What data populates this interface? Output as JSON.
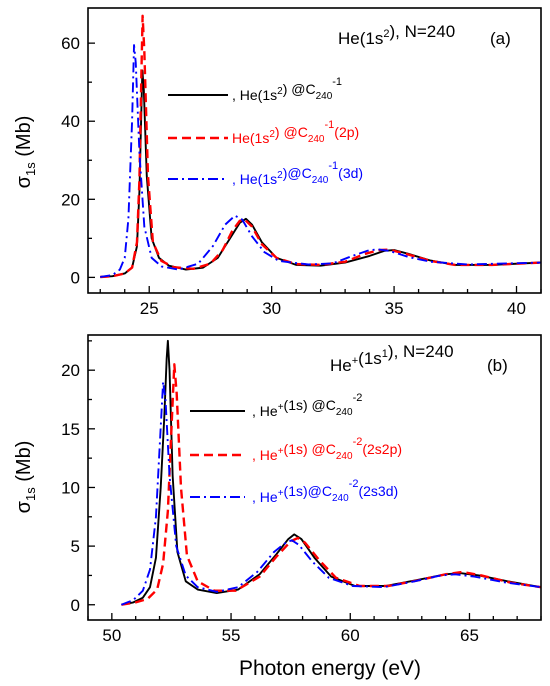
{
  "chart_data": [
    {
      "id": "a",
      "type": "line",
      "title": "He(1s²), N=240",
      "panel_label": "(a)",
      "xlabel": "",
      "ylabel": "σ1s (Mb)",
      "xlim": [
        22.5,
        41
      ],
      "ylim": [
        -4,
        69
      ],
      "xticks": [
        25,
        30,
        35,
        40
      ],
      "yticks": [
        0,
        20,
        40,
        60
      ],
      "grid": false,
      "legend_position": "center",
      "series": [
        {
          "name": ", He(1s²) @C240⁻¹",
          "color": "#000000",
          "dash": "solid",
          "points": [
            [
              23,
              0.1
            ],
            [
              23.5,
              0.3
            ],
            [
              24,
              1
            ],
            [
              24.3,
              2.5
            ],
            [
              24.5,
              8
            ],
            [
              24.6,
              22
            ],
            [
              24.68,
              43
            ],
            [
              24.72,
              53
            ],
            [
              24.78,
              48
            ],
            [
              24.9,
              26
            ],
            [
              25.1,
              10
            ],
            [
              25.4,
              5
            ],
            [
              25.8,
              3
            ],
            [
              26.5,
              2
            ],
            [
              27.2,
              2.5
            ],
            [
              27.8,
              5
            ],
            [
              28.3,
              10
            ],
            [
              28.7,
              14
            ],
            [
              28.95,
              15
            ],
            [
              29.2,
              13.5
            ],
            [
              29.6,
              9
            ],
            [
              30.2,
              5
            ],
            [
              31,
              3.2
            ],
            [
              32,
              3
            ],
            [
              33,
              3.8
            ],
            [
              34,
              5.5
            ],
            [
              34.6,
              6.8
            ],
            [
              35,
              7
            ],
            [
              35.6,
              6
            ],
            [
              36.5,
              4.3
            ],
            [
              37.5,
              3.2
            ],
            [
              39,
              3.2
            ],
            [
              41,
              3.8
            ]
          ]
        },
        {
          "name": "He(1s²) @C240⁻¹(2p)",
          "color": "#ff0000",
          "dash": "dashed",
          "points": [
            [
              23,
              0.1
            ],
            [
              23.5,
              0.3
            ],
            [
              24,
              1
            ],
            [
              24.3,
              2.5
            ],
            [
              24.5,
              9
            ],
            [
              24.6,
              25
            ],
            [
              24.68,
              52
            ],
            [
              24.73,
              67
            ],
            [
              24.8,
              58
            ],
            [
              24.95,
              26
            ],
            [
              25.15,
              9
            ],
            [
              25.5,
              4.2
            ],
            [
              26,
              2.6
            ],
            [
              26.8,
              2.2
            ],
            [
              27.5,
              3.5
            ],
            [
              28,
              7
            ],
            [
              28.4,
              12
            ],
            [
              28.7,
              14.5
            ],
            [
              28.9,
              14.8
            ],
            [
              29.2,
              13
            ],
            [
              29.6,
              8.5
            ],
            [
              30.2,
              5
            ],
            [
              31,
              3.4
            ],
            [
              32,
              3.2
            ],
            [
              33,
              4
            ],
            [
              33.8,
              6
            ],
            [
              34.4,
              7
            ],
            [
              34.8,
              7.1
            ],
            [
              35.5,
              6
            ],
            [
              36.5,
              4.2
            ],
            [
              37.5,
              3.2
            ],
            [
              39,
              3.2
            ],
            [
              41,
              3.8
            ]
          ]
        },
        {
          "name": ", He(1s²)@C240⁻¹(3d)",
          "color": "#0000ff",
          "dash": "dashdot",
          "points": [
            [
              23,
              0.1
            ],
            [
              23.5,
              0.6
            ],
            [
              23.8,
              2
            ],
            [
              24,
              5
            ],
            [
              24.15,
              15
            ],
            [
              24.3,
              40
            ],
            [
              24.38,
              59.5
            ],
            [
              24.45,
              55
            ],
            [
              24.6,
              32
            ],
            [
              24.8,
              13
            ],
            [
              25.1,
              5
            ],
            [
              25.5,
              2.8
            ],
            [
              26.2,
              2
            ],
            [
              27,
              3.5
            ],
            [
              27.6,
              8
            ],
            [
              28.1,
              13.5
            ],
            [
              28.5,
              15.8
            ],
            [
              28.8,
              14.8
            ],
            [
              29.2,
              10.5
            ],
            [
              29.7,
              6.5
            ],
            [
              30.3,
              4.2
            ],
            [
              31.5,
              3.3
            ],
            [
              32.5,
              3.6
            ],
            [
              33.3,
              5.5
            ],
            [
              33.9,
              6.8
            ],
            [
              34.3,
              7.2
            ],
            [
              34.8,
              6.8
            ],
            [
              35.6,
              5.2
            ],
            [
              36.5,
              4
            ],
            [
              38,
              3.3
            ],
            [
              41,
              3.8
            ]
          ]
        }
      ]
    },
    {
      "id": "b",
      "type": "line",
      "title": "He⁺(1s¹), N=240",
      "panel_label": "(b)",
      "xlabel": "Photon energy (eV)",
      "ylabel": "σ1s (Mb)",
      "xlim": [
        49,
        68
      ],
      "ylim": [
        -1.3,
        23
      ],
      "xticks": [
        50,
        55,
        60,
        65
      ],
      "yticks": [
        0,
        5,
        10,
        15,
        20
      ],
      "grid": false,
      "legend_position": "upper-center",
      "series": [
        {
          "name": ", He⁺(1s) @C240⁻²",
          "color": "#000000",
          "dash": "solid",
          "points": [
            [
              50.4,
              0
            ],
            [
              50.9,
              0.2
            ],
            [
              51.3,
              0.6
            ],
            [
              51.6,
              1.5
            ],
            [
              51.85,
              4
            ],
            [
              52.05,
              10
            ],
            [
              52.2,
              16
            ],
            [
              52.3,
              21
            ],
            [
              52.35,
              22.5
            ],
            [
              52.42,
              20
            ],
            [
              52.55,
              11
            ],
            [
              52.75,
              4.5
            ],
            [
              53.1,
              2
            ],
            [
              53.6,
              1.3
            ],
            [
              54.4,
              1
            ],
            [
              55.3,
              1.3
            ],
            [
              56.2,
              2.6
            ],
            [
              56.9,
              4.3
            ],
            [
              57.4,
              5.6
            ],
            [
              57.65,
              6
            ],
            [
              57.95,
              5.6
            ],
            [
              58.5,
              4
            ],
            [
              59.2,
              2.4
            ],
            [
              60.2,
              1.6
            ],
            [
              61.5,
              1.6
            ],
            [
              62.8,
              2.1
            ],
            [
              64,
              2.6
            ],
            [
              64.6,
              2.7
            ],
            [
              65.4,
              2.5
            ],
            [
              66.6,
              2
            ],
            [
              68,
              1.5
            ]
          ]
        },
        {
          "name": ", He⁺(1s) @C240⁻²(2s2p)",
          "color": "#ff0000",
          "dash": "dashed",
          "points": [
            [
              50.4,
              0
            ],
            [
              51,
              0.2
            ],
            [
              51.5,
              0.5
            ],
            [
              51.9,
              1.3
            ],
            [
              52.15,
              3.5
            ],
            [
              52.35,
              8
            ],
            [
              52.5,
              15
            ],
            [
              52.62,
              20.5
            ],
            [
              52.72,
              18
            ],
            [
              52.9,
              10
            ],
            [
              53.15,
              4.2
            ],
            [
              53.6,
              2
            ],
            [
              54.3,
              1.2
            ],
            [
              55.2,
              1.2
            ],
            [
              56.2,
              2.4
            ],
            [
              56.9,
              4.1
            ],
            [
              57.5,
              5.4
            ],
            [
              57.8,
              5.7
            ],
            [
              58.1,
              5.3
            ],
            [
              58.7,
              3.8
            ],
            [
              59.4,
              2.3
            ],
            [
              60.4,
              1.6
            ],
            [
              61.6,
              1.6
            ],
            [
              62.9,
              2.1
            ],
            [
              64,
              2.6
            ],
            [
              64.7,
              2.8
            ],
            [
              65.5,
              2.5
            ],
            [
              66.7,
              1.9
            ],
            [
              68,
              1.5
            ]
          ]
        },
        {
          "name": ", He⁺(1s)@C240⁻²(2s3d)",
          "color": "#0000ff",
          "dash": "dashdot",
          "points": [
            [
              50.4,
              0
            ],
            [
              50.9,
              0.4
            ],
            [
              51.3,
              1.2
            ],
            [
              51.6,
              3
            ],
            [
              51.85,
              7.5
            ],
            [
              52.02,
              14
            ],
            [
              52.15,
              19
            ],
            [
              52.25,
              17.5
            ],
            [
              52.42,
              11
            ],
            [
              52.7,
              5
            ],
            [
              53.1,
              2.5
            ],
            [
              53.6,
              1.5
            ],
            [
              54.4,
              1.1
            ],
            [
              55.3,
              1.5
            ],
            [
              56.1,
              2.8
            ],
            [
              56.8,
              4.5
            ],
            [
              57.3,
              5.3
            ],
            [
              57.55,
              5.5
            ],
            [
              57.85,
              5.1
            ],
            [
              58.4,
              3.7
            ],
            [
              59.1,
              2.3
            ],
            [
              60.1,
              1.6
            ],
            [
              61.4,
              1.5
            ],
            [
              62.7,
              2
            ],
            [
              63.8,
              2.5
            ],
            [
              64.4,
              2.6
            ],
            [
              65.2,
              2.4
            ],
            [
              66.5,
              1.9
            ],
            [
              68,
              1.5
            ]
          ]
        }
      ]
    }
  ]
}
